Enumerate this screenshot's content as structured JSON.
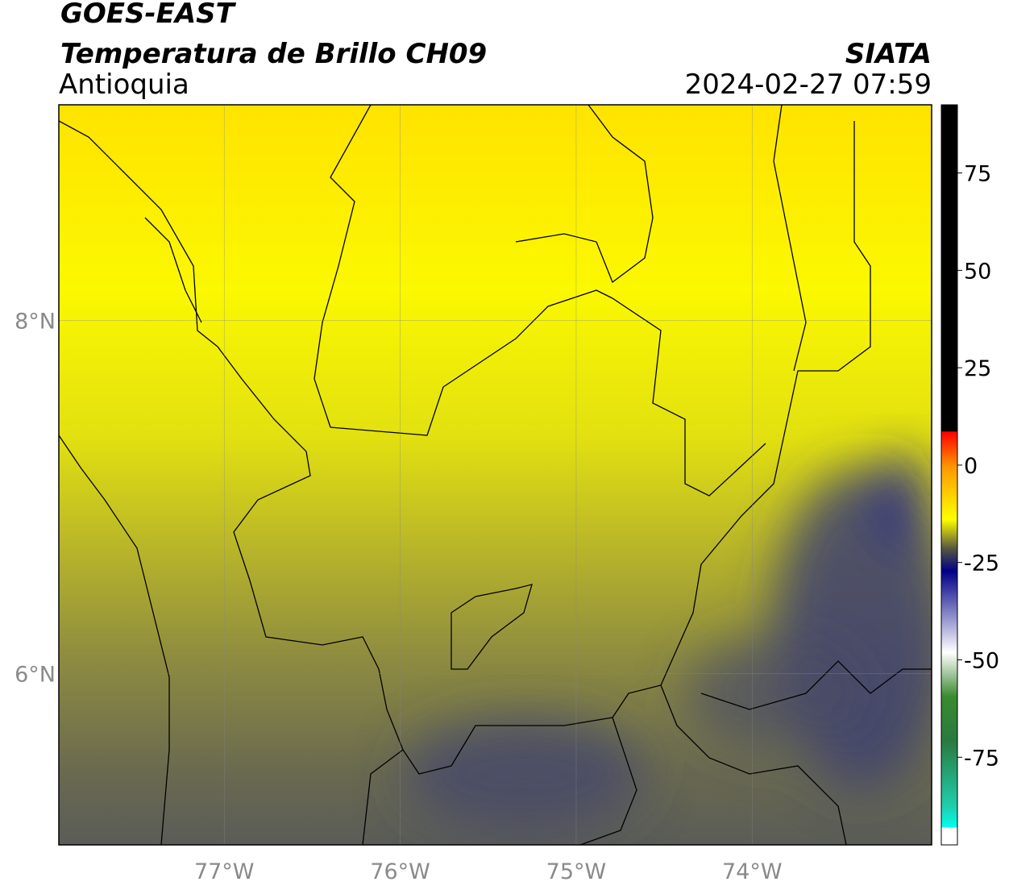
{
  "chart_data": {
    "type": "map",
    "title": "GOES-EAST",
    "subtitle": "Temperatura de Brillo CH09",
    "region": "Antioquia",
    "source": "SIATA",
    "datetime": "2024-02-27 07:59",
    "xlim": [
      -77.94,
      -72.98
    ],
    "ylim": [
      5.03,
      9.22
    ],
    "xticks": [
      {
        "value": -77,
        "label": "77°W"
      },
      {
        "value": -76,
        "label": "76°W"
      },
      {
        "value": -75,
        "label": "75°W"
      },
      {
        "value": -74,
        "label": "74°W"
      }
    ],
    "yticks": [
      {
        "value": 8,
        "label": "8°N"
      },
      {
        "value": 6,
        "label": "6°N"
      }
    ],
    "grid": true,
    "colorbar": {
      "lim": [
        -97.5,
        92.5
      ],
      "ticks": [
        75,
        50,
        25,
        0,
        -25,
        -50,
        -75
      ]
    }
  }
}
